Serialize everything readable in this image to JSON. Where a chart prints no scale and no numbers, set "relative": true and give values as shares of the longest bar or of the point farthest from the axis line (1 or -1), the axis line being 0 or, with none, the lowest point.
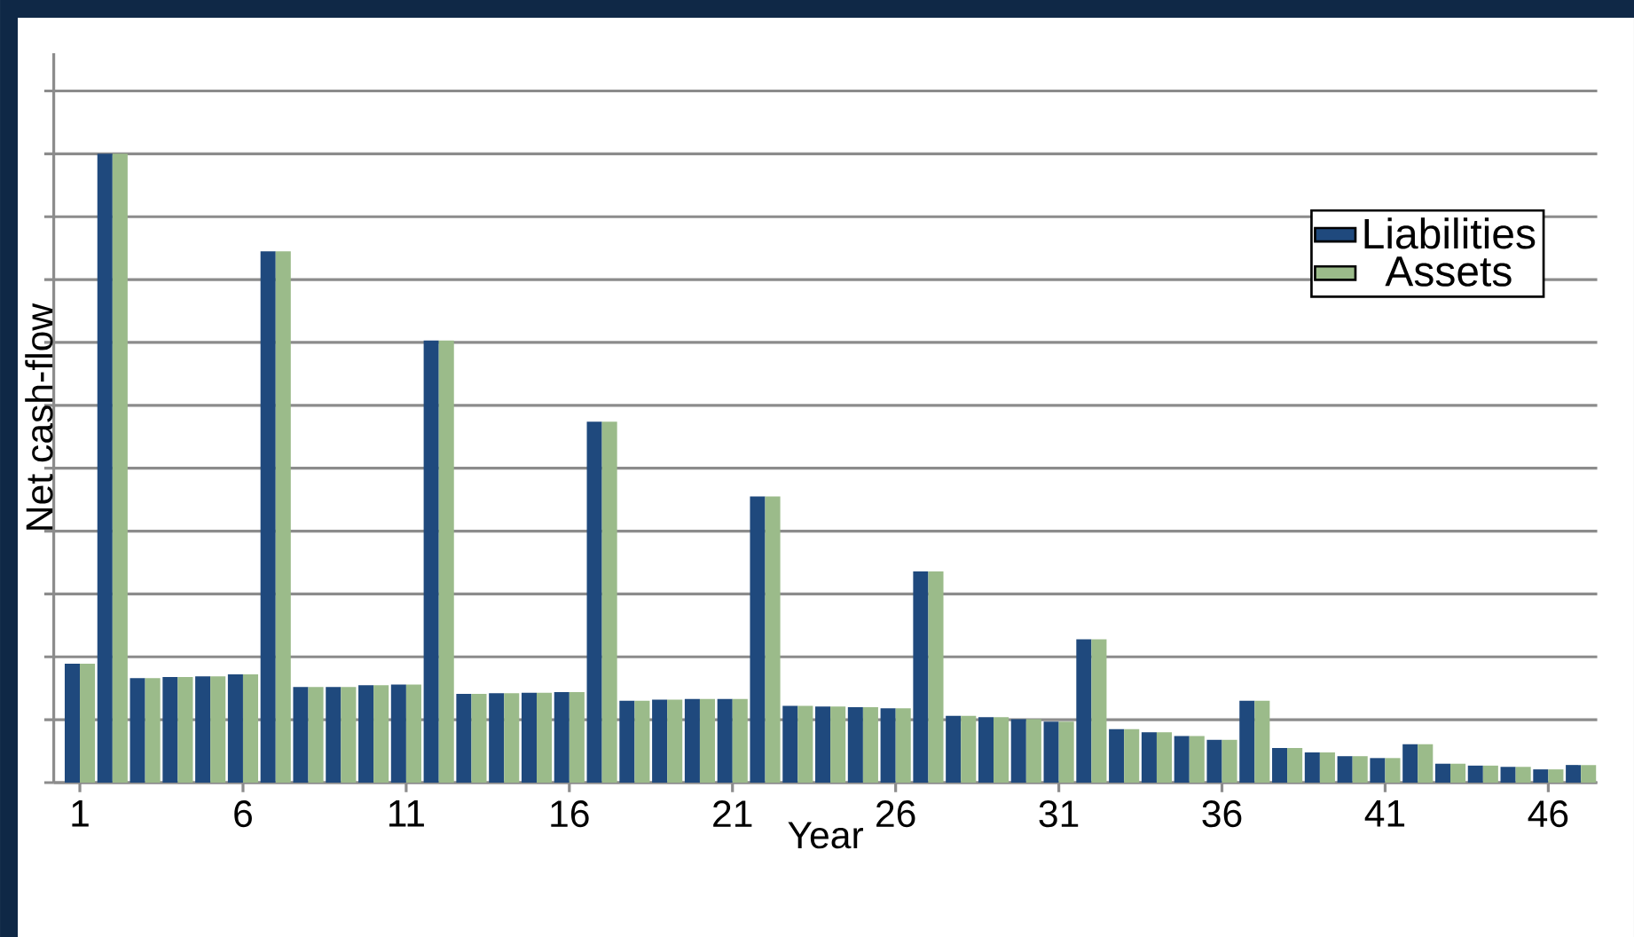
{
  "chart_data": {
    "type": "bar",
    "xlabel": "Year",
    "ylabel": "Net cash-flow",
    "relative": true,
    "grid": "y",
    "legend": "top right",
    "categories": [
      "1",
      null,
      null,
      null,
      null,
      "6",
      null,
      null,
      null,
      null,
      "11",
      null,
      null,
      null,
      null,
      "16",
      null,
      null,
      null,
      null,
      "21",
      null,
      null,
      null,
      null,
      "26",
      null,
      null,
      null,
      null,
      "31",
      null,
      null,
      null,
      null,
      "36",
      null,
      null,
      null,
      null,
      "41",
      null,
      null,
      null,
      null,
      "46",
      null
    ],
    "series": [
      {
        "name": "Liabilities",
        "color": "#1f497d",
        "values": [
          0.189,
          1,
          0.166,
          0.168,
          0.169,
          0.172,
          0.845,
          0.152,
          0.152,
          0.155,
          0.156,
          0.703,
          0.141,
          0.142,
          0.143,
          0.144,
          0.574,
          0.13,
          0.132,
          0.133,
          0.133,
          0.455,
          0.122,
          0.121,
          0.12,
          0.118,
          0.336,
          0.106,
          0.104,
          0.101,
          0.097,
          0.228,
          0.085,
          0.08,
          0.074,
          0.068,
          0.13,
          0.055,
          0.048,
          0.042,
          0.039,
          0.061,
          0.03,
          0.027,
          0.025,
          0.021,
          0.028
        ]
      },
      {
        "name": "Assets",
        "color": "#9bbb8a",
        "values": [
          0.189,
          1,
          0.166,
          0.168,
          0.169,
          0.172,
          0.845,
          0.152,
          0.152,
          0.155,
          0.156,
          0.703,
          0.141,
          0.142,
          0.143,
          0.144,
          0.574,
          0.13,
          0.132,
          0.133,
          0.133,
          0.455,
          0.122,
          0.121,
          0.12,
          0.118,
          0.336,
          0.106,
          0.104,
          0.101,
          0.097,
          0.228,
          0.085,
          0.08,
          0.074,
          0.068,
          0.13,
          0.055,
          0.048,
          0.042,
          0.039,
          0.061,
          0.03,
          0.027,
          0.025,
          0.021,
          0.028
        ]
      }
    ]
  }
}
